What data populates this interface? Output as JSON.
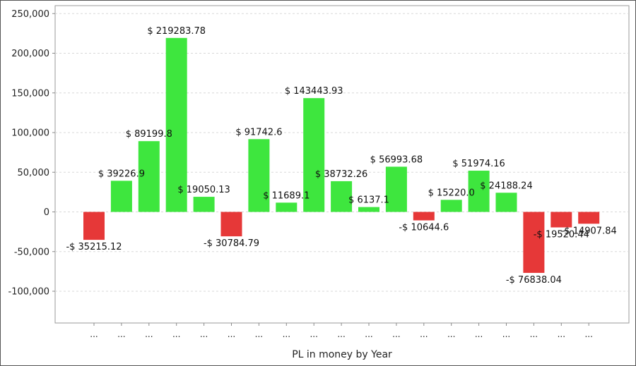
{
  "chart_data": {
    "type": "bar",
    "title": "",
    "xlabel": "PL in money by Year",
    "ylabel": "",
    "ylim": [
      -140000,
      260000
    ],
    "yticks": [
      250000,
      200000,
      150000,
      100000,
      50000,
      0,
      -50000,
      -100000
    ],
    "ytick_labels": [
      "250,000",
      "200,000",
      "150,000",
      "100,000",
      "50,000",
      "0",
      "-50,000",
      "-100,000"
    ],
    "grid": true,
    "legend": "none",
    "categories": [
      "...",
      "...",
      "...",
      "...",
      "...",
      "...",
      "...",
      "...",
      "...",
      "...",
      "...",
      "...",
      "...",
      "...",
      "...",
      "...",
      "...",
      "...",
      "..."
    ],
    "values": [
      -35215.12,
      39226.9,
      89199.8,
      219283.78,
      19050.13,
      -30784.79,
      91742.6,
      11689.1,
      143443.93,
      38732.26,
      6137.1,
      56993.68,
      -10644.6,
      15220.0,
      51974.16,
      24188.24,
      -76838.04,
      -19520.44,
      -14907.84
    ],
    "data_labels": [
      "-$ 35215.12",
      "$ 39226.9",
      "$ 89199.8",
      "$ 219283.78",
      "$ 19050.13",
      "-$ 30784.79",
      "$ 91742.6",
      "$ 11689.1",
      "$ 143443.93",
      "$ 38732.26",
      "$ 6137.1",
      "$ 56993.68",
      "-$ 10644.6",
      "$ 15220.0",
      "$ 51974.16",
      "$ 24188.24",
      "-$ 76838.04",
      "-$ 19520.44",
      "-$ 14907.84"
    ],
    "colors": {
      "positive": "#3ee63e",
      "negative": "#e63838"
    }
  }
}
